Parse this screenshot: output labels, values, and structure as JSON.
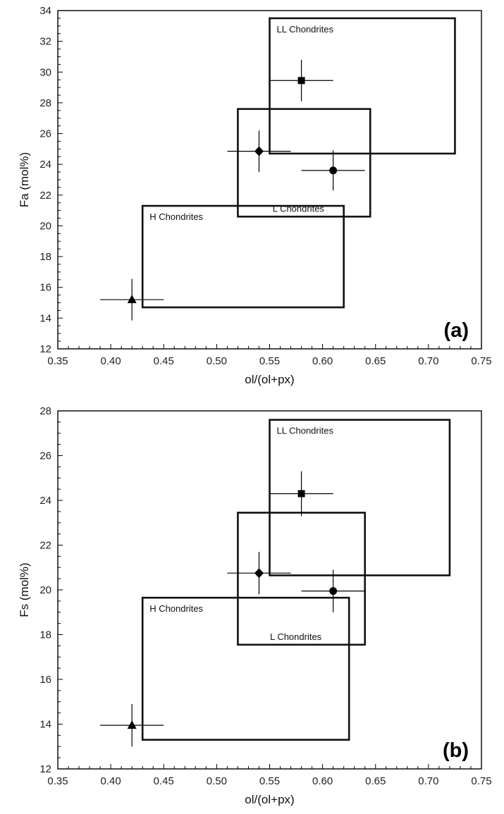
{
  "chart_data": [
    {
      "type": "scatter",
      "panel_label": "(a)",
      "xlabel": "ol/(ol+px)",
      "ylabel": "Fa (mol%)",
      "xlim": [
        0.35,
        0.75
      ],
      "ylim": [
        12,
        34
      ],
      "xticks": [
        "0.35",
        "0.40",
        "0.45",
        "0.50",
        "0.55",
        "0.60",
        "0.65",
        "0.70",
        "0.75"
      ],
      "yticks": [
        "12",
        "14",
        "16",
        "18",
        "20",
        "22",
        "24",
        "26",
        "28",
        "30",
        "32",
        "34"
      ],
      "x_minor_step": 0.01,
      "y_minor_step": 0.5,
      "regions": [
        {
          "label": "LL Chondrites",
          "x0": 0.55,
          "x1": 0.725,
          "y0": 24.7,
          "y1": 33.5,
          "label_pos": "top-left"
        },
        {
          "label": "L Chondrites",
          "x0": 0.52,
          "x1": 0.645,
          "y0": 20.6,
          "y1": 27.6,
          "label_pos": "bottom"
        },
        {
          "label": "H Chondrites",
          "x0": 0.43,
          "x1": 0.62,
          "y0": 14.7,
          "y1": 21.3,
          "label_pos": "top-left"
        }
      ],
      "points": [
        {
          "marker": "square",
          "x": 0.58,
          "y": 29.45,
          "xerr": 0.03,
          "yerr": 1.35
        },
        {
          "marker": "diamond",
          "x": 0.54,
          "y": 24.85,
          "xerr": 0.03,
          "yerr": 1.35
        },
        {
          "marker": "circle",
          "x": 0.61,
          "y": 23.6,
          "xerr": 0.03,
          "yerr": 1.3
        },
        {
          "marker": "triangle",
          "x": 0.42,
          "y": 15.2,
          "xerr": 0.03,
          "yerr": 1.35
        }
      ]
    },
    {
      "type": "scatter",
      "panel_label": "(b)",
      "xlabel": "ol/(ol+px)",
      "ylabel": "Fs (mol%)",
      "xlim": [
        0.35,
        0.75
      ],
      "ylim": [
        12,
        28
      ],
      "xticks": [
        "0.35",
        "0.40",
        "0.45",
        "0.50",
        "0.55",
        "0.60",
        "0.65",
        "0.70",
        "0.75"
      ],
      "yticks": [
        "12",
        "14",
        "16",
        "18",
        "20",
        "22",
        "24",
        "26",
        "28"
      ],
      "x_minor_step": 0.01,
      "y_minor_step": 0.5,
      "regions": [
        {
          "label": "LL Chondrites",
          "x0": 0.55,
          "x1": 0.72,
          "y0": 20.65,
          "y1": 27.6,
          "label_pos": "top-left"
        },
        {
          "label": "L Chondrites",
          "x0": 0.52,
          "x1": 0.64,
          "y0": 17.55,
          "y1": 23.45,
          "label_pos": "bottom"
        },
        {
          "label": "H Chondrites",
          "x0": 0.43,
          "x1": 0.625,
          "y0": 13.3,
          "y1": 19.65,
          "label_pos": "top-left"
        }
      ],
      "points": [
        {
          "marker": "square",
          "x": 0.58,
          "y": 24.3,
          "xerr": 0.03,
          "yerr": 1.0
        },
        {
          "marker": "diamond",
          "x": 0.54,
          "y": 20.75,
          "xerr": 0.03,
          "yerr": 0.95
        },
        {
          "marker": "circle",
          "x": 0.61,
          "y": 19.95,
          "xerr": 0.03,
          "yerr": 0.95
        },
        {
          "marker": "triangle",
          "x": 0.42,
          "y": 13.95,
          "xerr": 0.03,
          "yerr": 0.95
        }
      ]
    }
  ]
}
